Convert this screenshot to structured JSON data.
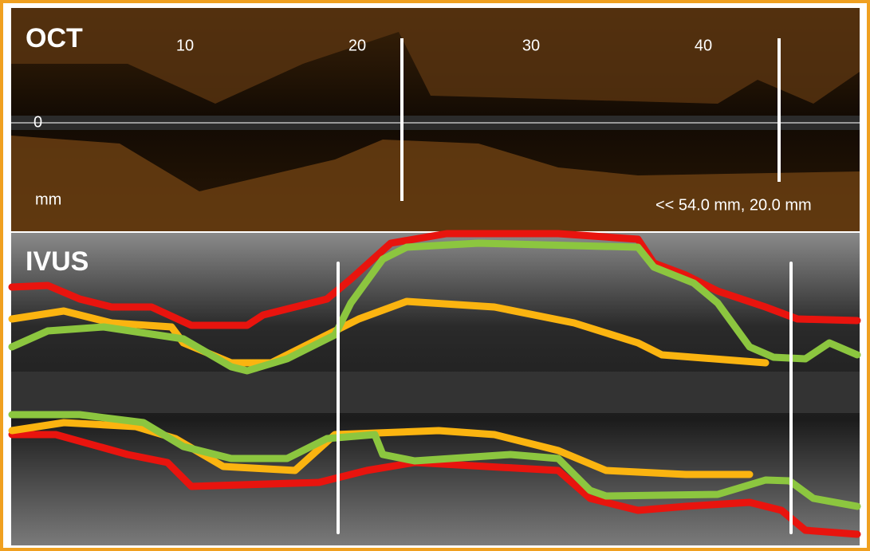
{
  "oct": {
    "title": "OCT",
    "scale_labels": [
      10,
      20,
      30,
      40
    ],
    "zero_label": 0,
    "unit_label": "mm",
    "info": "<< 54.0 mm, 20.0 mm"
  },
  "ivus": {
    "title": "IVUS"
  }
}
